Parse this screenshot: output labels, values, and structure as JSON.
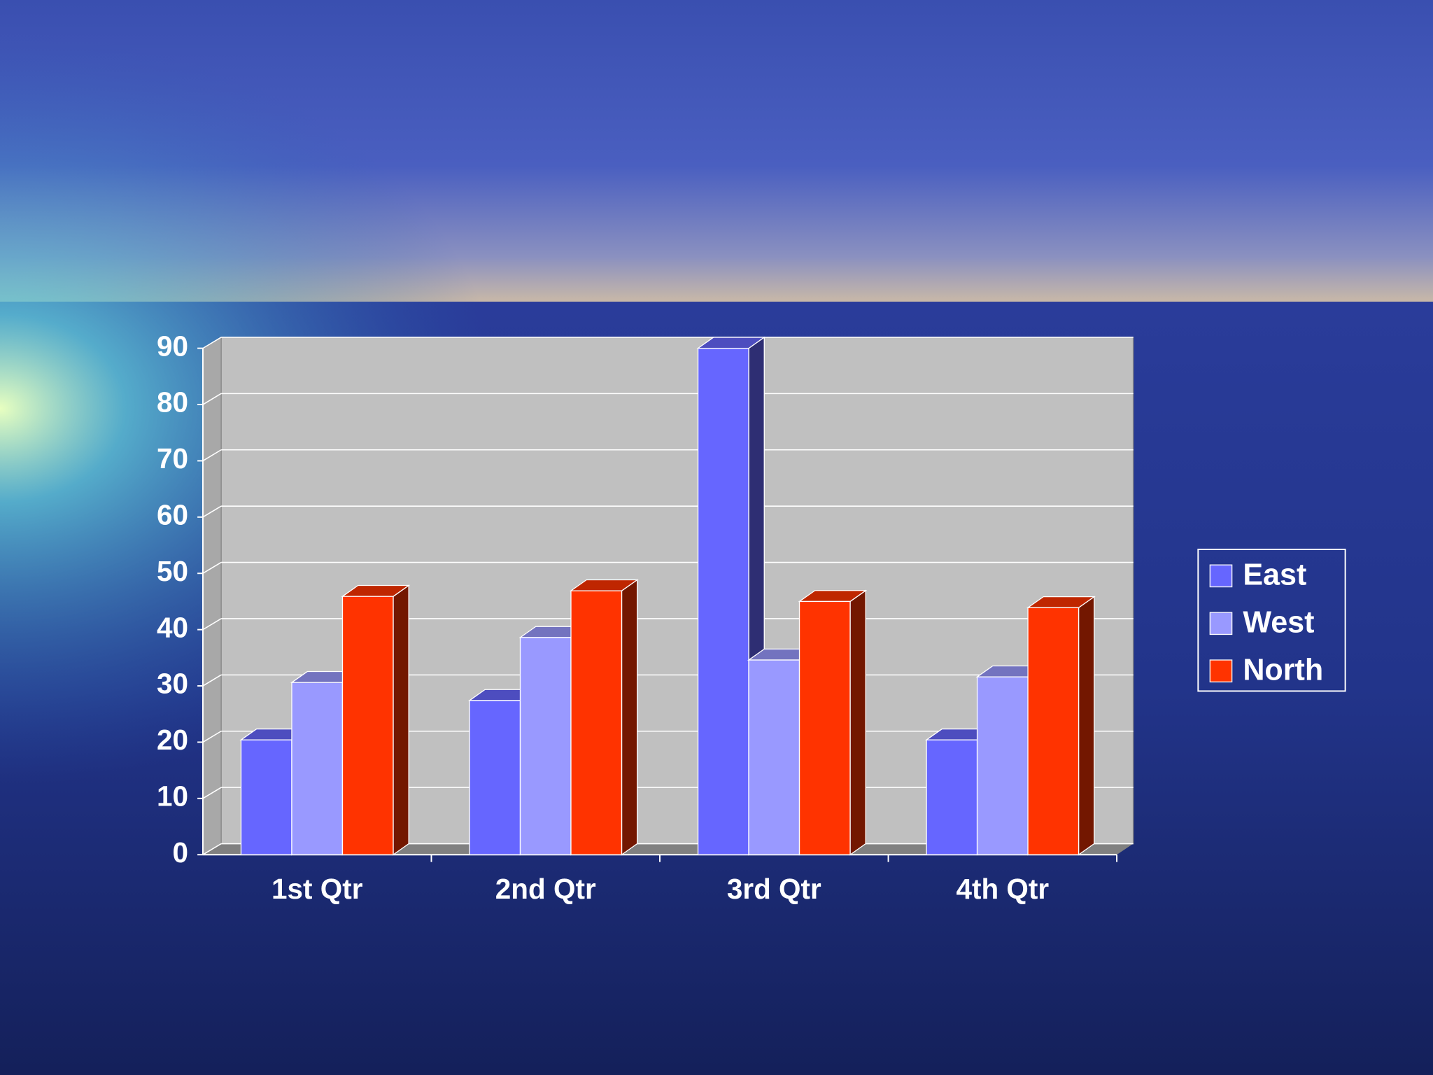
{
  "chart_data": {
    "type": "bar3d",
    "categories": [
      "1st Qtr",
      "2nd Qtr",
      "3rd Qtr",
      "4th Qtr"
    ],
    "series": [
      {
        "name": "East",
        "color": "#6666ff",
        "values": [
          20.4,
          27.4,
          90,
          20.4
        ]
      },
      {
        "name": "West",
        "color": "#9999ff",
        "values": [
          30.6,
          38.6,
          34.6,
          31.6
        ]
      },
      {
        "name": "North",
        "color": "#ff3300",
        "values": [
          45.9,
          46.9,
          45,
          43.9
        ]
      }
    ],
    "ylim": [
      0,
      90
    ],
    "yticks": [
      0,
      10,
      20,
      30,
      40,
      50,
      60,
      70,
      80,
      90
    ],
    "grid": true,
    "legend": "right"
  }
}
